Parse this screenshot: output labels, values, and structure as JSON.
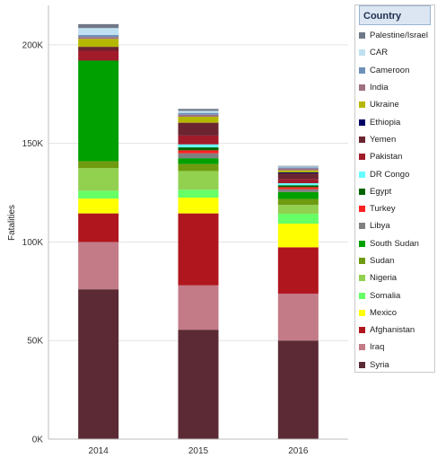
{
  "chart_data": {
    "type": "bar",
    "stacked": true,
    "title": "",
    "xlabel": "",
    "ylabel": "Fatalities",
    "ylim": [
      0,
      220000
    ],
    "yticks": [
      0,
      50000,
      100000,
      150000,
      200000
    ],
    "ytick_labels": [
      "0K",
      "50K",
      "100K",
      "150K",
      "200K"
    ],
    "categories": [
      "2014",
      "2015",
      "2016"
    ],
    "legend_title": "Country",
    "legend_position": "right",
    "grid": true,
    "series": [
      {
        "name": "Syria",
        "color": "#5b2a35",
        "values": [
          76000,
          55500,
          50000
        ]
      },
      {
        "name": "Iraq",
        "color": "#c27b87",
        "values": [
          24000,
          22500,
          23800
        ]
      },
      {
        "name": "Afghanistan",
        "color": "#b0161e",
        "values": [
          14500,
          36500,
          23500
        ]
      },
      {
        "name": "Mexico",
        "color": "#ffff00",
        "values": [
          7500,
          8000,
          12000
        ]
      },
      {
        "name": "Somalia",
        "color": "#66ff66",
        "values": [
          4000,
          4000,
          5000
        ]
      },
      {
        "name": "Nigeria",
        "color": "#92d050",
        "values": [
          11500,
          9500,
          4500
        ]
      },
      {
        "name": "Sudan",
        "color": "#6e9b0f",
        "values": [
          3500,
          3500,
          3000
        ]
      },
      {
        "name": "South Sudan",
        "color": "#00a000",
        "values": [
          51000,
          3000,
          3500
        ]
      },
      {
        "name": "Libya",
        "color": "#808080",
        "values": [
          0,
          2500,
          1500
        ]
      },
      {
        "name": "Turkey",
        "color": "#ff2020",
        "values": [
          0,
          1500,
          1000
        ]
      },
      {
        "name": "Egypt",
        "color": "#006400",
        "values": [
          0,
          1500,
          1000
        ]
      },
      {
        "name": "DR Congo",
        "color": "#66ffff",
        "values": [
          0,
          1500,
          1000
        ]
      },
      {
        "name": "Pakistan",
        "color": "#a11b2b",
        "values": [
          5000,
          4500,
          2000
        ]
      },
      {
        "name": "Yemen",
        "color": "#6b2430",
        "values": [
          2000,
          6500,
          3000
        ]
      },
      {
        "name": "Ethiopia",
        "color": "#000066",
        "values": [
          0,
          0,
          500
        ]
      },
      {
        "name": "Ukraine",
        "color": "#b5b800",
        "values": [
          4000,
          3000,
          1000
        ]
      },
      {
        "name": "India",
        "color": "#9f7080",
        "values": [
          1000,
          1000,
          1000
        ]
      },
      {
        "name": "Cameroon",
        "color": "#6e8fb8",
        "values": [
          1000,
          1000,
          500
        ]
      },
      {
        "name": "CAR",
        "color": "#bfe0f0",
        "values": [
          3500,
          1000,
          500
        ]
      },
      {
        "name": "Palestine/Israel",
        "color": "#707888",
        "values": [
          2000,
          1000,
          300
        ]
      }
    ]
  }
}
